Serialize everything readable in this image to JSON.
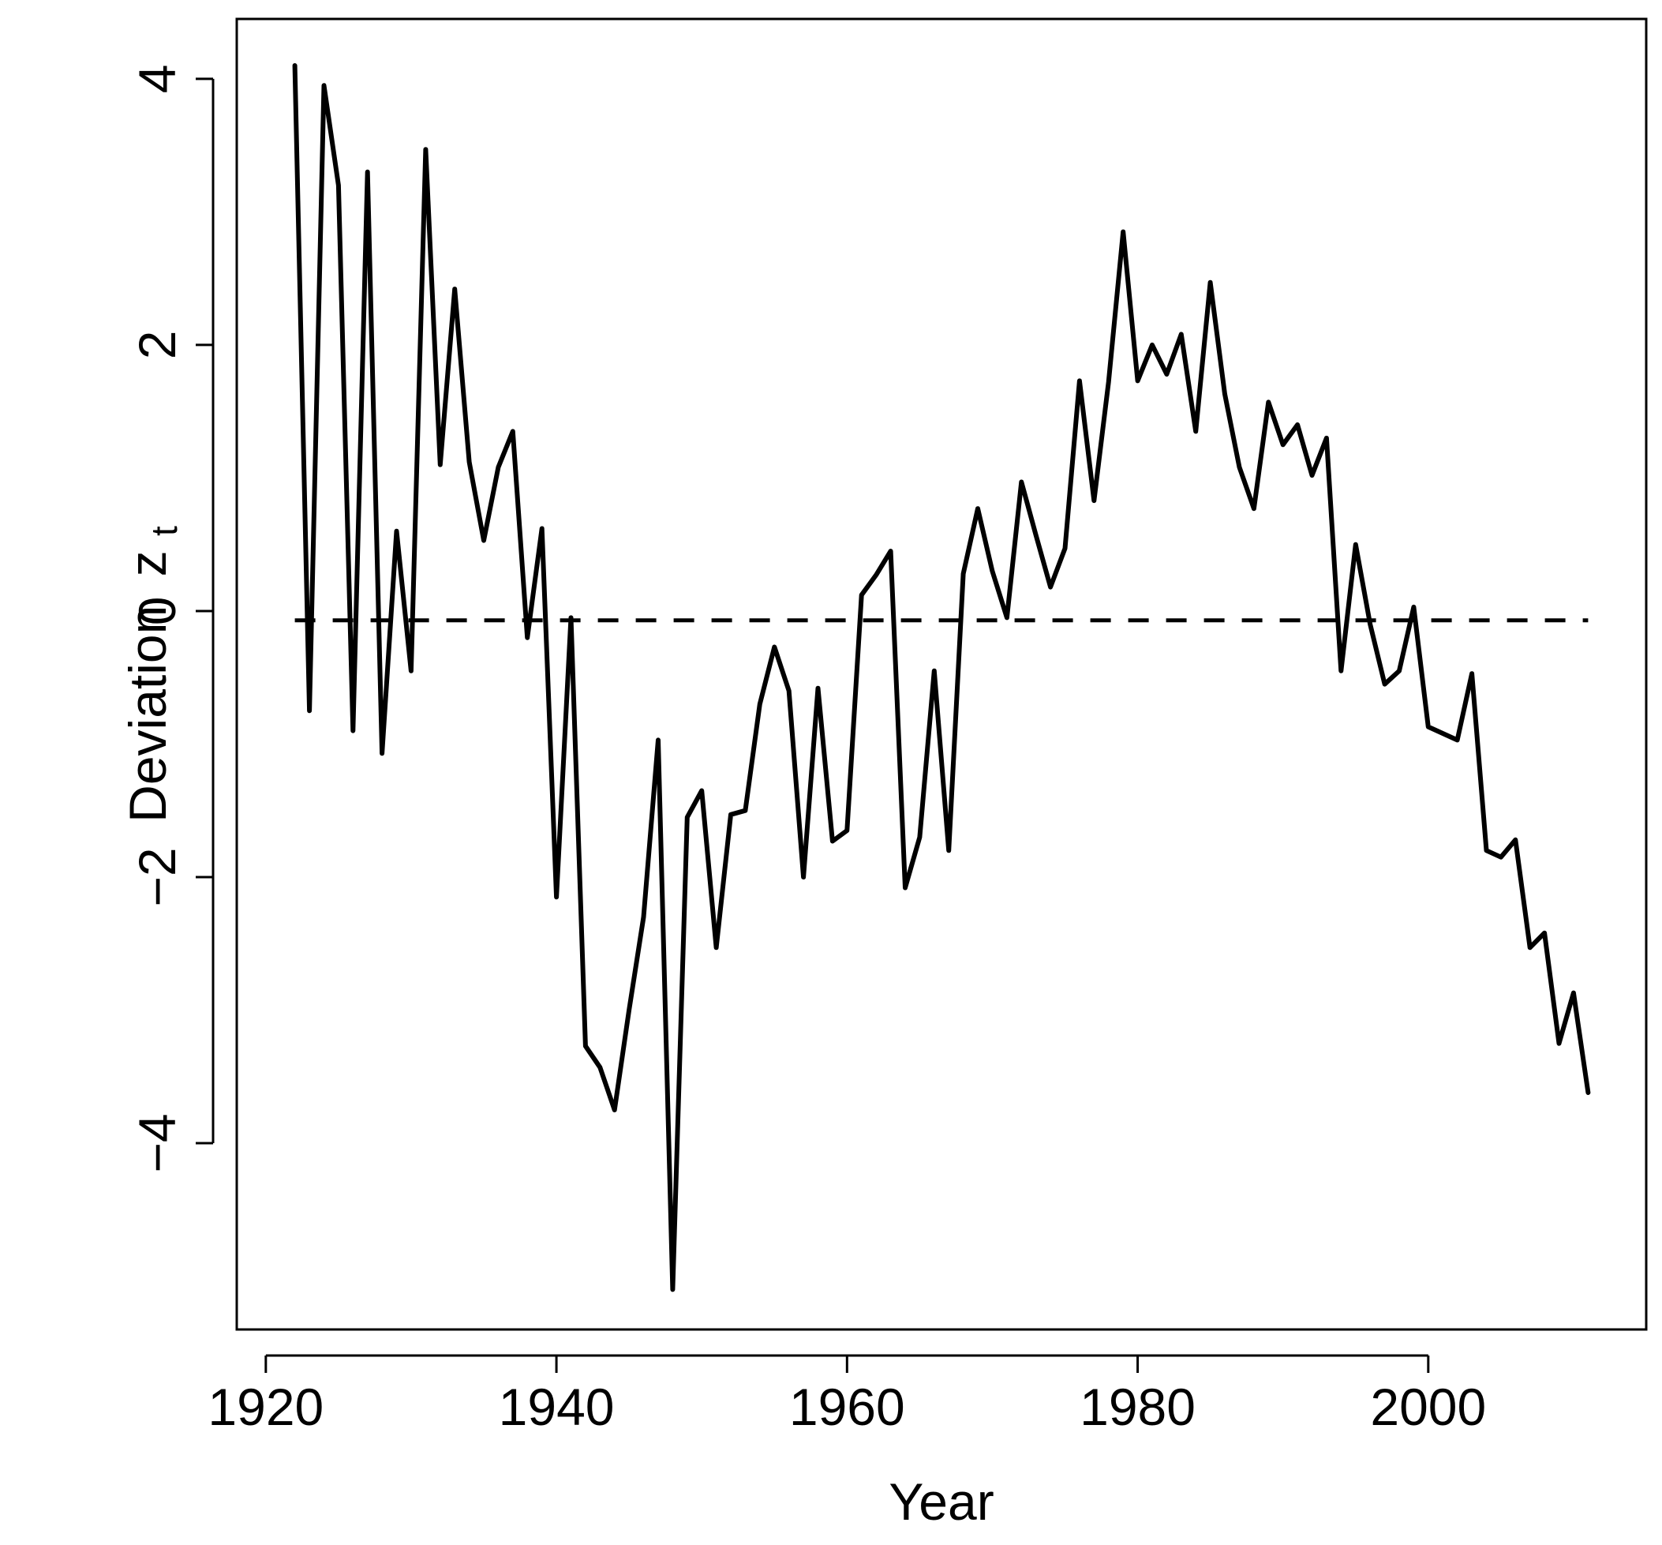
{
  "chart_data": {
    "type": "line",
    "xlabel": "Year",
    "ylabel": "Deviation",
    "ylabel_symbol": "z",
    "ylabel_subscript": "t",
    "xlim": [
      1918,
      2015
    ],
    "ylim": [
      -5.4,
      4.45
    ],
    "xticks": [
      1920,
      1940,
      1960,
      1980,
      2000
    ],
    "yticks": [
      -4,
      -2,
      0,
      2,
      4
    ],
    "xtick_labels": [
      "1920",
      "1940",
      "1960",
      "1980",
      "2000"
    ],
    "ytick_labels": [
      "−4",
      "−2",
      "0",
      "2",
      "4"
    ],
    "grid": false,
    "series": [
      {
        "style": "solid",
        "color": "#000000",
        "x": [
          1922,
          1923,
          1924,
          1925,
          1926,
          1927,
          1928,
          1929,
          1930,
          1931,
          1932,
          1933,
          1934,
          1935,
          1936,
          1937,
          1938,
          1939,
          1940,
          1941,
          1942,
          1943,
          1944,
          1945,
          1946,
          1947,
          1948,
          1949,
          1950,
          1951,
          1952,
          1953,
          1954,
          1955,
          1956,
          1957,
          1958,
          1959,
          1960,
          1961,
          1962,
          1963,
          1964,
          1965,
          1966,
          1967,
          1968,
          1969,
          1970,
          1971,
          1972,
          1973,
          1974,
          1975,
          1976,
          1977,
          1978,
          1979,
          1980,
          1981,
          1982,
          1983,
          1984,
          1985,
          1986,
          1987,
          1988,
          1989,
          1990,
          1991,
          1992,
          1993,
          1994,
          1995,
          1996,
          1997,
          1998,
          1999,
          2000,
          2001,
          2002,
          2003,
          2004,
          2005,
          2006,
          2007,
          2008,
          2009,
          2010,
          2011
        ],
        "y": [
          4.1,
          -0.75,
          3.95,
          3.2,
          -0.9,
          3.3,
          -1.07,
          0.6,
          -0.45,
          3.47,
          1.1,
          2.42,
          1.12,
          0.53,
          1.08,
          1.35,
          -0.2,
          0.62,
          -2.15,
          -0.05,
          -3.27,
          -3.43,
          -3.75,
          -3.0,
          -2.3,
          -0.97,
          -5.1,
          -1.55,
          -1.35,
          -2.53,
          -1.53,
          -1.5,
          -0.7,
          -0.27,
          -0.6,
          -2.0,
          -0.58,
          -1.73,
          -1.65,
          0.12,
          0.27,
          0.45,
          -2.08,
          -1.7,
          -0.45,
          -1.8,
          0.28,
          0.77,
          0.3,
          -0.05,
          0.97,
          0.57,
          0.18,
          0.47,
          1.73,
          0.83,
          1.72,
          2.85,
          1.73,
          2.0,
          1.78,
          2.08,
          1.35,
          2.47,
          1.63,
          1.08,
          0.77,
          1.57,
          1.25,
          1.4,
          1.02,
          1.3,
          -0.45,
          0.5,
          -0.1,
          -0.55,
          -0.45,
          0.03,
          -0.87,
          -0.92,
          -0.97,
          -0.47,
          -1.8,
          -1.85,
          -1.72,
          -2.53,
          -2.42,
          -3.25,
          -2.87,
          -3.62
        ]
      },
      {
        "style": "dashed",
        "color": "#000000",
        "x": [
          1922,
          2011
        ],
        "y": [
          -0.07,
          -0.07
        ]
      }
    ]
  }
}
